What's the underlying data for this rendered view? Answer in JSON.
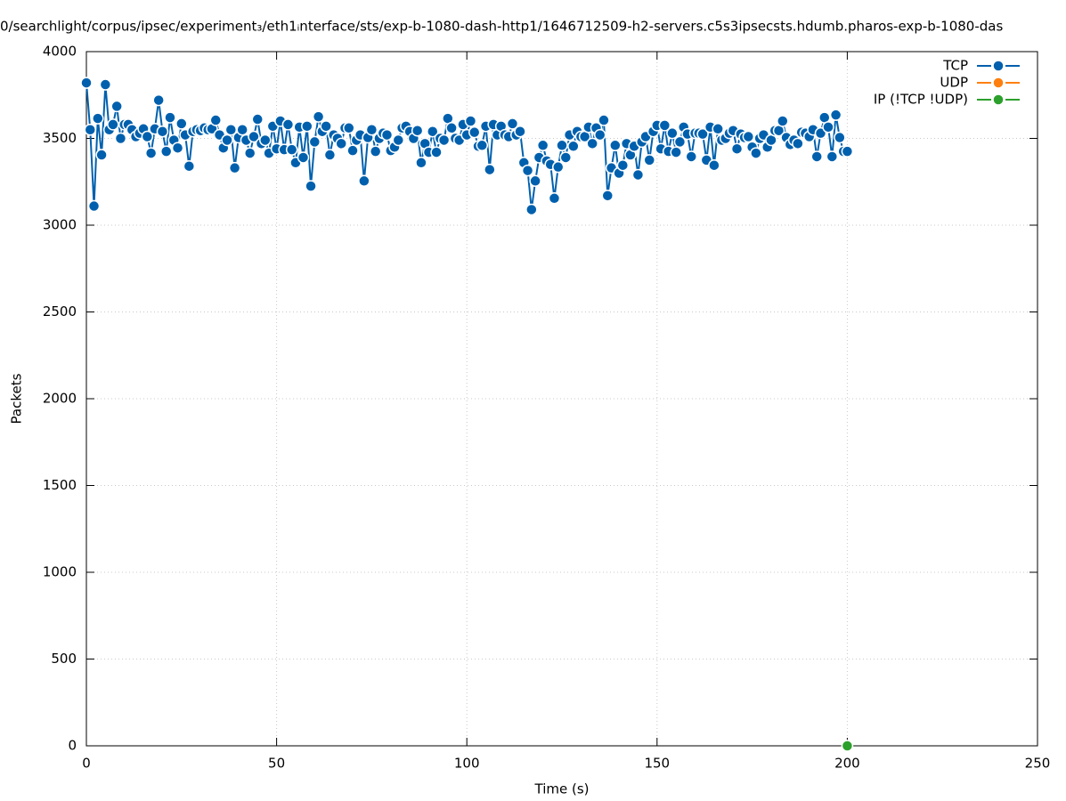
{
  "chart_data": {
    "type": "line",
    "title": "0/searchlight/corpus/ipsec/experiment₃/eth1ᵢnterface/sts/exp-b-1080-dash-http1/1646712509-h2-servers.c5s3ipsecsts.hdumb.pharos-exp-b-1080-das",
    "x_label": "Time (s)",
    "y_label": "Packets",
    "xlim": [
      0,
      250
    ],
    "xticks": [
      0,
      50,
      100,
      150,
      200,
      250
    ],
    "ylim": [
      0,
      4000
    ],
    "yticks": [
      0,
      500,
      1000,
      1500,
      2000,
      2500,
      3000,
      3500,
      4000
    ],
    "grid": true,
    "legend": "top-right",
    "series": [
      {
        "name": "TCP",
        "color": "#0060ad",
        "x": [
          0,
          1,
          2,
          3,
          4,
          5,
          6,
          7,
          8,
          9,
          10,
          11,
          12,
          13,
          14,
          15,
          16,
          17,
          18,
          19,
          20,
          21,
          22,
          23,
          24,
          25,
          26,
          27,
          28,
          29,
          30,
          31,
          32,
          33,
          34,
          35,
          36,
          37,
          38,
          39,
          40,
          41,
          42,
          43,
          44,
          45,
          46,
          47,
          48,
          49,
          50,
          51,
          52,
          53,
          54,
          55,
          56,
          57,
          58,
          59,
          60,
          61,
          62,
          63,
          64,
          65,
          66,
          67,
          68,
          69,
          70,
          71,
          72,
          73,
          74,
          75,
          76,
          77,
          78,
          79,
          80,
          81,
          82,
          83,
          84,
          85,
          86,
          87,
          88,
          89,
          90,
          91,
          92,
          93,
          94,
          95,
          96,
          97,
          98,
          99,
          100,
          101,
          102,
          103,
          104,
          105,
          106,
          107,
          108,
          109,
          110,
          111,
          112,
          113,
          114,
          115,
          116,
          117,
          118,
          119,
          120,
          121,
          122,
          123,
          124,
          125,
          126,
          127,
          128,
          129,
          130,
          131,
          132,
          133,
          134,
          135,
          136,
          137,
          138,
          139,
          140,
          141,
          142,
          143,
          144,
          145,
          146,
          147,
          148,
          149,
          150,
          151,
          152,
          153,
          154,
          155,
          156,
          157,
          158,
          159,
          160,
          161,
          162,
          163,
          164,
          165,
          166,
          167,
          168,
          169,
          170,
          171,
          172,
          173,
          174,
          175,
          176,
          177,
          178,
          179,
          180,
          181,
          182,
          183,
          184,
          185,
          186,
          187,
          188,
          189,
          190,
          191,
          192,
          193,
          194,
          195,
          196,
          197,
          198,
          199,
          200
        ],
        "values": [
          3820,
          3550,
          3110,
          3615,
          3405,
          3810,
          3550,
          3580,
          3685,
          3500,
          3580,
          3580,
          3550,
          3510,
          3530,
          3555,
          3510,
          3415,
          3555,
          3720,
          3540,
          3425,
          3620,
          3490,
          3445,
          3585,
          3520,
          3340,
          3540,
          3550,
          3545,
          3560,
          3550,
          3555,
          3605,
          3520,
          3445,
          3490,
          3550,
          3330,
          3505,
          3550,
          3490,
          3415,
          3510,
          3610,
          3470,
          3490,
          3415,
          3570,
          3440,
          3600,
          3435,
          3580,
          3435,
          3360,
          3565,
          3390,
          3570,
          3225,
          3480,
          3625,
          3540,
          3570,
          3405,
          3520,
          3500,
          3470,
          3560,
          3560,
          3430,
          3490,
          3520,
          3255,
          3505,
          3550,
          3425,
          3500,
          3530,
          3520,
          3430,
          3450,
          3490,
          3560,
          3570,
          3540,
          3500,
          3545,
          3360,
          3470,
          3420,
          3540,
          3420,
          3500,
          3490,
          3615,
          3560,
          3500,
          3490,
          3580,
          3520,
          3600,
          3535,
          3455,
          3460,
          3570,
          3320,
          3580,
          3520,
          3570,
          3520,
          3510,
          3585,
          3520,
          3540,
          3360,
          3315,
          3090,
          3255,
          3390,
          3460,
          3370,
          3350,
          3155,
          3335,
          3460,
          3390,
          3520,
          3455,
          3540,
          3510,
          3510,
          3565,
          3470,
          3560,
          3520,
          3605,
          3170,
          3330,
          3460,
          3300,
          3345,
          3470,
          3405,
          3455,
          3290,
          3480,
          3510,
          3375,
          3540,
          3575,
          3440,
          3575,
          3425,
          3530,
          3420,
          3480,
          3565,
          3525,
          3395,
          3530,
          3530,
          3525,
          3375,
          3565,
          3345,
          3555,
          3490,
          3500,
          3530,
          3545,
          3440,
          3525,
          3505,
          3510,
          3450,
          3415,
          3500,
          3520,
          3450,
          3490,
          3545,
          3545,
          3600,
          3505,
          3465,
          3490,
          3470,
          3535,
          3530,
          3510,
          3550,
          3395,
          3530,
          3620,
          3565,
          3395,
          3635,
          3505,
          3425,
          3425
        ]
      },
      {
        "name": "UDP",
        "color": "#ff7f0e",
        "x": [],
        "values": []
      },
      {
        "name": "IP (!TCP  !UDP)",
        "color": "#2ca02c",
        "x": [
          200
        ],
        "values": [
          0
        ]
      }
    ]
  }
}
